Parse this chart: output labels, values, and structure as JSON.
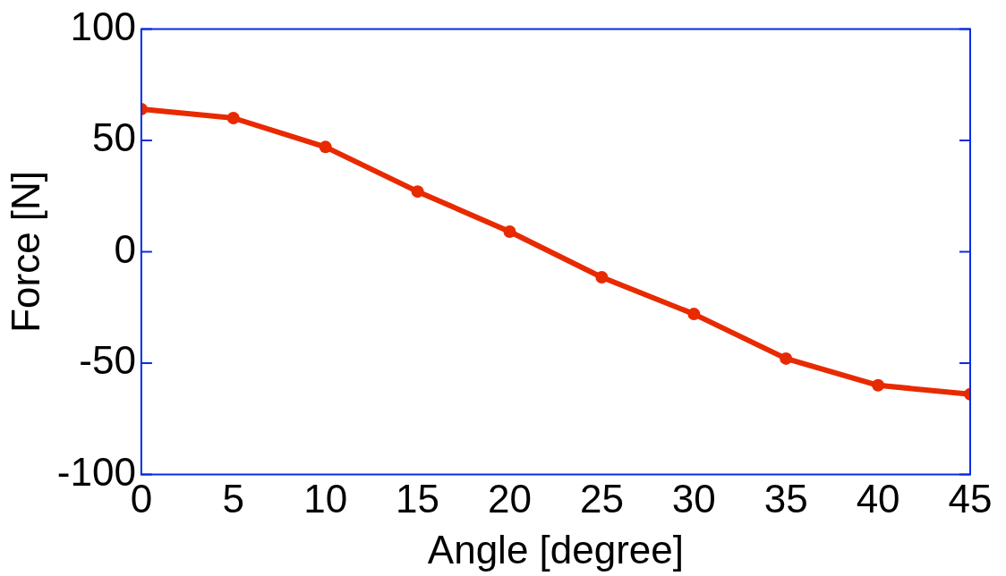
{
  "chart_data": {
    "type": "line",
    "xlabel": "Angle [degree]",
    "ylabel": "Force [N]",
    "x": [
      0,
      5,
      10,
      15,
      20,
      25,
      30,
      35,
      40,
      45
    ],
    "series": [
      {
        "color": "#e82a00",
        "values": [
          64,
          60,
          47,
          27,
          9,
          -11.5,
          -28,
          -48,
          -60,
          -64
        ]
      }
    ],
    "xlim": [
      0,
      45
    ],
    "xticks": [
      0,
      5,
      10,
      15,
      20,
      25,
      30,
      35,
      40,
      45
    ],
    "ylim": [
      -100,
      100
    ],
    "yticks": [
      -100,
      -50,
      0,
      50,
      100
    ],
    "grid": false,
    "legend": false,
    "marker": "circle",
    "line_style": "solid"
  }
}
